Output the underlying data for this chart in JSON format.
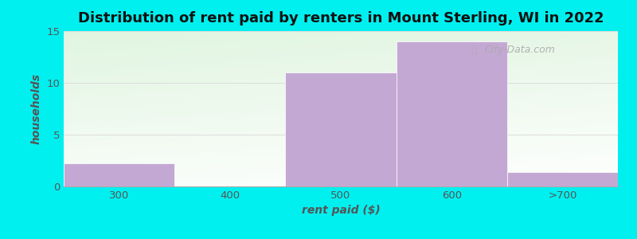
{
  "categories": [
    "300",
    "400",
    "500",
    "600",
    ">700"
  ],
  "values": [
    2.2,
    0,
    11,
    14,
    1.4
  ],
  "bar_color": "#c4a8d4",
  "bar_edgecolor": "#c4a8d4",
  "title": "Distribution of rent paid by renters in Mount Sterling, WI in 2022",
  "xlabel": "rent paid ($)",
  "ylabel": "households",
  "ylim": [
    0,
    15
  ],
  "yticks": [
    0,
    5,
    10,
    15
  ],
  "background_outer": "#00f0f0",
  "title_fontsize": 13,
  "axis_label_fontsize": 10,
  "tick_fontsize": 9.5,
  "watermark": "City-Data.com"
}
